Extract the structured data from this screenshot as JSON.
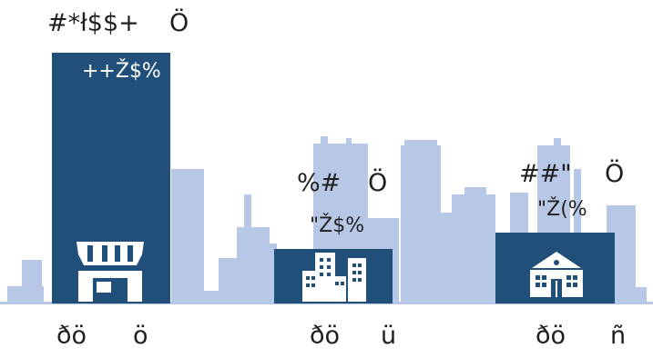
{
  "colors": {
    "bar": "#204f7a",
    "skyline": "#b7c8e6",
    "text": "#1f1f1f",
    "background": "#ffffff"
  },
  "columns": [
    {
      "top_left": "#*ł$$+",
      "top_right": "Ö",
      "inner_label": "++Ž$%",
      "icon": "storefront-icon",
      "bottom_left": "ðö",
      "bottom_right": "ö",
      "value": 1.0
    },
    {
      "top_left": "%#",
      "top_right": "Ö",
      "inner_label": "\"Ž$%",
      "icon": "office-buildings-icon",
      "bottom_left": "ðö",
      "bottom_right": "ü",
      "value": 0.22
    },
    {
      "top_left": "##\"",
      "top_right": "Ö",
      "inner_label": "\"Ž(%",
      "icon": "school-building-icon",
      "bottom_left": "ðö",
      "bottom_right": "ñ",
      "value": 0.29
    }
  ]
}
